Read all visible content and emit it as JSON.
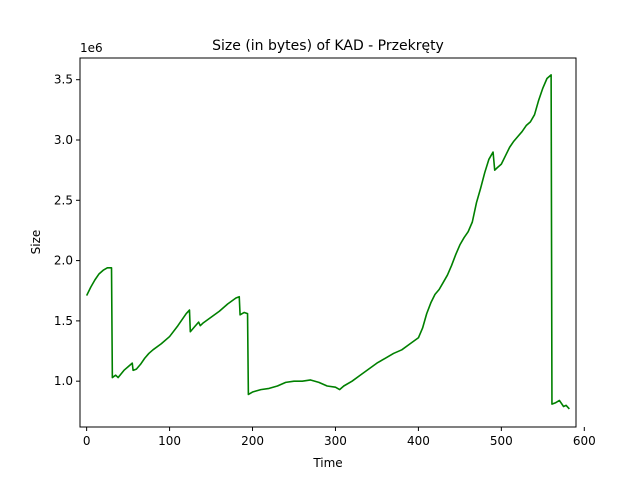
{
  "chart_data": {
    "type": "line",
    "title": "Size (in bytes) of KAD - Przekręty",
    "xlabel": "Time",
    "ylabel": "Size",
    "y_offset_label": "1e6",
    "y_scale_factor": 1000000,
    "xlim": [
      -8,
      590
    ],
    "ylim": [
      0.62,
      3.68
    ],
    "x_ticks": [
      0,
      100,
      200,
      300,
      400,
      500,
      600
    ],
    "y_ticks": [
      1.0,
      1.5,
      2.0,
      2.5,
      3.0,
      3.5
    ],
    "y_tick_labels": [
      "1.0",
      "1.5",
      "2.0",
      "2.5",
      "3.0",
      "3.5"
    ],
    "grid": false,
    "line_color": "#008000",
    "series": [
      {
        "x": [
          0,
          5,
          10,
          15,
          20,
          25,
          30,
          31,
          35,
          38,
          45,
          50,
          55,
          56,
          60,
          65,
          70,
          75,
          80,
          90,
          100,
          110,
          120,
          124,
          125,
          130,
          135,
          137,
          140,
          150,
          160,
          170,
          180,
          184,
          185,
          190,
          194,
          195,
          200,
          210,
          220,
          230,
          240,
          250,
          260,
          270,
          280,
          290,
          300,
          305,
          310,
          320,
          330,
          340,
          350,
          360,
          370,
          380,
          390,
          400,
          405,
          410,
          415,
          420,
          425,
          430,
          435,
          440,
          445,
          450,
          455,
          460,
          465,
          470,
          475,
          480,
          485,
          490,
          492,
          495,
          500,
          505,
          510,
          515,
          520,
          525,
          530,
          535,
          540,
          545,
          550,
          555,
          560,
          561,
          565,
          570,
          575,
          578,
          582
        ],
        "y": [
          1.71,
          1.78,
          1.84,
          1.89,
          1.92,
          1.94,
          1.94,
          1.03,
          1.05,
          1.03,
          1.09,
          1.12,
          1.15,
          1.09,
          1.1,
          1.14,
          1.19,
          1.23,
          1.26,
          1.31,
          1.37,
          1.46,
          1.56,
          1.59,
          1.41,
          1.45,
          1.49,
          1.46,
          1.48,
          1.53,
          1.58,
          1.64,
          1.69,
          1.7,
          1.55,
          1.57,
          1.56,
          0.89,
          0.91,
          0.93,
          0.94,
          0.96,
          0.99,
          1.0,
          1.0,
          1.01,
          0.99,
          0.96,
          0.95,
          0.93,
          0.96,
          1.0,
          1.05,
          1.1,
          1.15,
          1.19,
          1.23,
          1.26,
          1.31,
          1.36,
          1.44,
          1.56,
          1.65,
          1.72,
          1.76,
          1.82,
          1.88,
          1.96,
          2.05,
          2.13,
          2.19,
          2.24,
          2.32,
          2.48,
          2.6,
          2.73,
          2.84,
          2.9,
          2.75,
          2.77,
          2.8,
          2.87,
          2.94,
          2.99,
          3.03,
          3.07,
          3.12,
          3.15,
          3.21,
          3.33,
          3.43,
          3.51,
          3.54,
          0.81,
          0.82,
          0.84,
          0.79,
          0.8,
          0.77
        ]
      }
    ]
  }
}
